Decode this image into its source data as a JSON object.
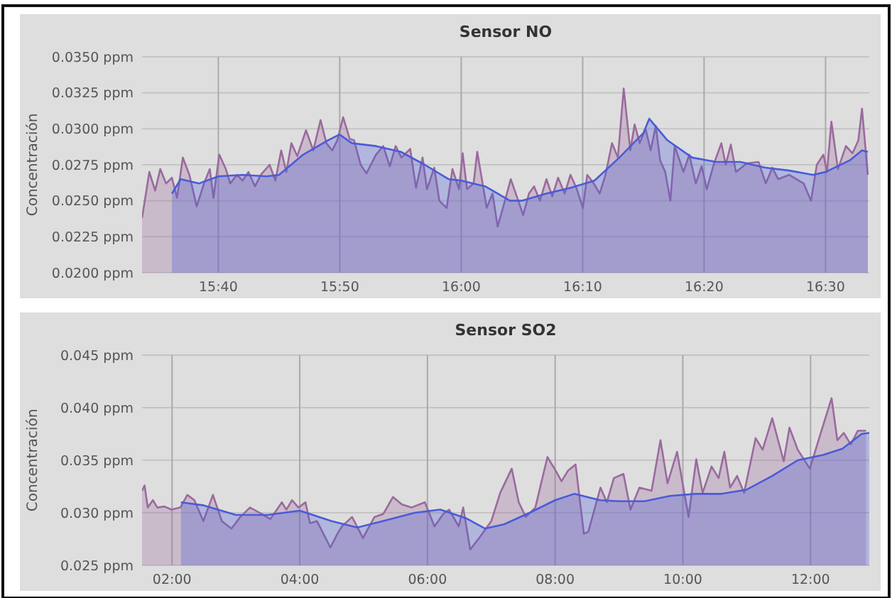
{
  "chart_data": [
    {
      "type": "area",
      "title": "Sensor NO",
      "ylabel": "Concentración",
      "xlim": [
        15.562,
        16.56
      ],
      "ylim": [
        0.02,
        0.035
      ],
      "xticks": [
        {
          "value": 15.6667,
          "label": "15:40"
        },
        {
          "value": 15.8333,
          "label": "15:50"
        },
        {
          "value": 16,
          "label": "16:00"
        },
        {
          "value": 16.1667,
          "label": "16:10"
        },
        {
          "value": 16.3333,
          "label": "16:20"
        },
        {
          "value": 16.5,
          "label": "16:30"
        }
      ],
      "yticks": [
        {
          "value": 0.02,
          "label": "0.0200 ppm"
        },
        {
          "value": 0.0225,
          "label": "0.0225 ppm"
        },
        {
          "value": 0.025,
          "label": "0.0250 ppm"
        },
        {
          "value": 0.0275,
          "label": "0.0275 ppm"
        },
        {
          "value": 0.03,
          "label": "0.0300 ppm"
        },
        {
          "value": 0.0325,
          "label": "0.0325 ppm"
        },
        {
          "value": 0.035,
          "label": "0.0350 ppm"
        }
      ],
      "grid": true,
      "series": [
        {
          "color": "#9a6a9e",
          "x": [
            15.562,
            15.572,
            15.58,
            15.587,
            15.595,
            15.603,
            15.61,
            15.618,
            15.627,
            15.637,
            15.647,
            15.655,
            15.66,
            15.668,
            15.677,
            15.683,
            15.692,
            15.7,
            15.708,
            15.717,
            15.725,
            15.737,
            15.745,
            15.753,
            15.76,
            15.767,
            15.775,
            15.787,
            15.797,
            15.807,
            15.815,
            15.823,
            15.83,
            15.838,
            15.847,
            15.853,
            15.862,
            15.87,
            15.883,
            15.893,
            15.902,
            15.91,
            15.918,
            15.93,
            15.938,
            15.947,
            15.953,
            15.963,
            15.97,
            15.98,
            15.988,
            15.997,
            16.002,
            16.008,
            16.017,
            16.022,
            16.035,
            16.043,
            16.05,
            16.06,
            16.068,
            16.077,
            16.085,
            16.093,
            16.1,
            16.108,
            16.117,
            16.125,
            16.133,
            16.142,
            16.15,
            16.158,
            16.167,
            16.173,
            16.182,
            16.19,
            16.198,
            16.207,
            16.215,
            16.223,
            16.232,
            16.238,
            16.245,
            16.253,
            16.26,
            16.267,
            16.273,
            16.28,
            16.287,
            16.293,
            16.305,
            16.313,
            16.322,
            16.33,
            16.337,
            16.347,
            16.357,
            16.363,
            16.37,
            16.377,
            16.392,
            16.408,
            16.418,
            16.427,
            16.435,
            16.45,
            16.47,
            16.48,
            16.488,
            16.497,
            16.502,
            16.508,
            16.517,
            16.528,
            16.537,
            16.545,
            16.55,
            16.558
          ],
          "values": [
            0.0238,
            0.027,
            0.0257,
            0.0272,
            0.0262,
            0.0266,
            0.0252,
            0.028,
            0.0268,
            0.0246,
            0.0262,
            0.0272,
            0.0252,
            0.0282,
            0.0272,
            0.0262,
            0.0268,
            0.0264,
            0.027,
            0.026,
            0.0268,
            0.0275,
            0.0264,
            0.0285,
            0.027,
            0.029,
            0.0281,
            0.0299,
            0.0285,
            0.0306,
            0.029,
            0.0285,
            0.0292,
            0.0308,
            0.0293,
            0.0292,
            0.0275,
            0.0269,
            0.0282,
            0.0288,
            0.0274,
            0.0288,
            0.028,
            0.0286,
            0.0259,
            0.028,
            0.0258,
            0.0273,
            0.025,
            0.0245,
            0.0272,
            0.0258,
            0.0283,
            0.0258,
            0.0262,
            0.0284,
            0.0245,
            0.0255,
            0.0232,
            0.025,
            0.0265,
            0.0252,
            0.024,
            0.0255,
            0.026,
            0.025,
            0.0265,
            0.0253,
            0.0266,
            0.0255,
            0.0268,
            0.0259,
            0.0245,
            0.0268,
            0.0262,
            0.0255,
            0.0268,
            0.029,
            0.028,
            0.0328,
            0.0285,
            0.0303,
            0.029,
            0.03,
            0.0285,
            0.0302,
            0.0278,
            0.027,
            0.025,
            0.0288,
            0.027,
            0.0282,
            0.0262,
            0.0274,
            0.0258,
            0.0276,
            0.029,
            0.0275,
            0.0289,
            0.027,
            0.0276,
            0.0277,
            0.0262,
            0.0273,
            0.0265,
            0.0268,
            0.0262,
            0.025,
            0.0275,
            0.0282,
            0.027,
            0.0305,
            0.0272,
            0.0288,
            0.0283,
            0.0292,
            0.0314,
            0.0268
          ]
        },
        {
          "color": "#4a5bd8",
          "x": [
            15.603,
            15.615,
            15.64,
            15.667,
            15.7,
            15.733,
            15.75,
            15.783,
            15.817,
            15.833,
            15.85,
            15.883,
            15.917,
            15.95,
            15.983,
            16,
            16.033,
            16.067,
            16.083,
            16.117,
            16.15,
            16.183,
            16.217,
            16.25,
            16.258,
            16.283,
            16.317,
            16.35,
            16.383,
            16.417,
            16.45,
            16.483,
            16.5,
            16.533,
            16.55,
            16.558
          ],
          "values": [
            0.0255,
            0.0265,
            0.0262,
            0.0267,
            0.0268,
            0.0267,
            0.0268,
            0.0282,
            0.0292,
            0.0296,
            0.029,
            0.0288,
            0.0284,
            0.0275,
            0.0265,
            0.0264,
            0.026,
            0.025,
            0.025,
            0.0255,
            0.0259,
            0.0264,
            0.028,
            0.0297,
            0.0307,
            0.0292,
            0.028,
            0.0277,
            0.0277,
            0.0273,
            0.0271,
            0.0268,
            0.027,
            0.0278,
            0.0285,
            0.0284
          ]
        }
      ]
    },
    {
      "type": "area",
      "title": "Sensor SO2",
      "ylabel": "Concentración",
      "xlim": [
        1.53,
        12.92
      ],
      "ylim": [
        0.025,
        0.045
      ],
      "xticks": [
        {
          "value": 2,
          "label": "02:00"
        },
        {
          "value": 4,
          "label": "04:00"
        },
        {
          "value": 6,
          "label": "06:00"
        },
        {
          "value": 8,
          "label": "08:00"
        },
        {
          "value": 10,
          "label": "10:00"
        },
        {
          "value": 12,
          "label": "12:00"
        }
      ],
      "yticks": [
        {
          "value": 0.025,
          "label": "0.025 ppm"
        },
        {
          "value": 0.03,
          "label": "0.030 ppm"
        },
        {
          "value": 0.035,
          "label": "0.035 ppm"
        },
        {
          "value": 0.04,
          "label": "0.040 ppm"
        },
        {
          "value": 0.045,
          "label": "0.045 ppm"
        }
      ],
      "grid": true,
      "series": [
        {
          "color": "#9a6a9e",
          "x": [
            1.53,
            1.57,
            1.62,
            1.7,
            1.77,
            1.88,
            1.99,
            2.13,
            2.24,
            2.35,
            2.49,
            2.64,
            2.78,
            2.93,
            3.07,
            3.22,
            3.4,
            3.54,
            3.72,
            3.79,
            3.88,
            3.98,
            4.09,
            4.16,
            4.27,
            4.48,
            4.59,
            4.66,
            4.82,
            4.99,
            5.17,
            5.31,
            5.46,
            5.6,
            5.75,
            5.96,
            6.11,
            6.25,
            6.34,
            6.49,
            6.56,
            6.67,
            6.81,
            7,
            7.14,
            7.32,
            7.43,
            7.54,
            7.69,
            7.8,
            7.88,
            8.01,
            8.1,
            8.2,
            8.32,
            8.45,
            8.52,
            8.71,
            8.81,
            8.92,
            9.07,
            9.18,
            9.32,
            9.51,
            9.65,
            9.76,
            9.91,
            10.09,
            10.21,
            10.31,
            10.45,
            10.56,
            10.65,
            10.74,
            10.85,
            10.96,
            11.14,
            11.25,
            11.4,
            11.58,
            11.67,
            11.8,
            11.99,
            12.16,
            12.33,
            12.42,
            12.52,
            12.63,
            12.74,
            12.87
          ],
          "values": [
            0.0321,
            0.0326,
            0.0305,
            0.0312,
            0.0305,
            0.0306,
            0.0303,
            0.0305,
            0.0317,
            0.0312,
            0.0292,
            0.0317,
            0.0292,
            0.0285,
            0.0296,
            0.0305,
            0.0299,
            0.0294,
            0.031,
            0.0303,
            0.0312,
            0.0305,
            0.031,
            0.029,
            0.0292,
            0.0267,
            0.028,
            0.0287,
            0.0296,
            0.0276,
            0.0296,
            0.0299,
            0.0315,
            0.0308,
            0.0305,
            0.031,
            0.0287,
            0.0299,
            0.0303,
            0.0287,
            0.0305,
            0.0265,
            0.0276,
            0.0292,
            0.0319,
            0.0342,
            0.031,
            0.0296,
            0.0305,
            0.0333,
            0.0353,
            0.034,
            0.033,
            0.034,
            0.0346,
            0.028,
            0.0282,
            0.0324,
            0.031,
            0.0333,
            0.0337,
            0.0303,
            0.0324,
            0.0321,
            0.0369,
            0.0328,
            0.0358,
            0.0296,
            0.0351,
            0.0319,
            0.0344,
            0.0333,
            0.0358,
            0.0324,
            0.0335,
            0.0319,
            0.0371,
            0.036,
            0.039,
            0.0349,
            0.0381,
            0.036,
            0.0342,
            0.0376,
            0.0409,
            0.0369,
            0.0376,
            0.0365,
            0.0378,
            0.0378
          ]
        },
        {
          "color": "#4a5bd8",
          "x": [
            2.14,
            2.5,
            3,
            3.5,
            4,
            4.5,
            4.9,
            5.3,
            5.8,
            6.2,
            6.6,
            6.9,
            7.2,
            7.6,
            8,
            8.3,
            8.7,
            9,
            9.4,
            9.8,
            10.2,
            10.6,
            11,
            11.4,
            11.8,
            12.2,
            12.5,
            12.8,
            12.92
          ],
          "values": [
            0.031,
            0.0307,
            0.0298,
            0.0298,
            0.0302,
            0.0292,
            0.0286,
            0.0292,
            0.03,
            0.0303,
            0.0295,
            0.0285,
            0.0289,
            0.03,
            0.0312,
            0.0318,
            0.0312,
            0.0311,
            0.0311,
            0.0316,
            0.0318,
            0.0318,
            0.0322,
            0.0335,
            0.035,
            0.0355,
            0.0361,
            0.0375,
            0.0376
          ]
        }
      ]
    }
  ]
}
